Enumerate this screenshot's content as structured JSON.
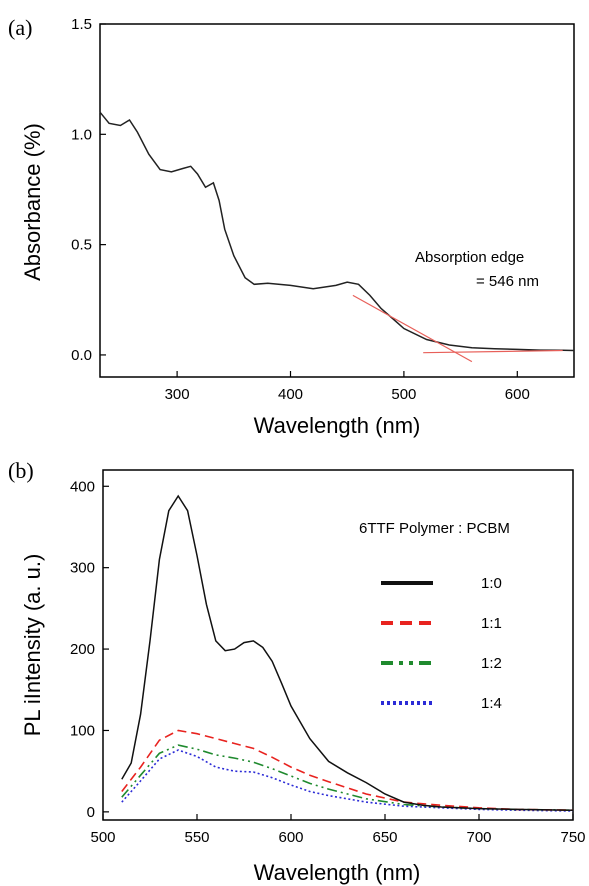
{
  "panels": [
    {
      "label": "(a)"
    },
    {
      "label": "(b)"
    }
  ],
  "chart_data": [
    {
      "type": "line",
      "xlabel": "Wavelength (nm)",
      "ylabel": "Absorbance (%)",
      "xlim": [
        232,
        650
      ],
      "ylim": [
        -0.1,
        1.5
      ],
      "xticks": [
        300,
        400,
        500,
        600
      ],
      "yticks": [
        "0.0",
        "0.5",
        "1.0",
        "1.5"
      ],
      "annotation": [
        "Absorption edge",
        "= 546 nm"
      ],
      "tangent_lines_color": "#e8605a",
      "series": [
        {
          "color": "#222222",
          "x": [
            232,
            240,
            250,
            258,
            265,
            275,
            285,
            295,
            305,
            312,
            318,
            325,
            332,
            337,
            342,
            350,
            360,
            368,
            380,
            400,
            420,
            440,
            450,
            460,
            470,
            480,
            490,
            500,
            520,
            540,
            560,
            580,
            600,
            620,
            640,
            650
          ],
          "y": [
            1.1,
            1.05,
            1.04,
            1.065,
            1.01,
            0.91,
            0.84,
            0.83,
            0.845,
            0.855,
            0.82,
            0.76,
            0.78,
            0.7,
            0.57,
            0.45,
            0.35,
            0.32,
            0.325,
            0.315,
            0.3,
            0.315,
            0.33,
            0.32,
            0.27,
            0.21,
            0.165,
            0.12,
            0.07,
            0.045,
            0.033,
            0.028,
            0.025,
            0.022,
            0.021,
            0.02
          ]
        }
      ],
      "tangents": [
        {
          "x": [
            455,
            560
          ],
          "y": [
            0.27,
            -0.03
          ]
        },
        {
          "x": [
            517,
            640
          ],
          "y": [
            0.01,
            0.02
          ]
        }
      ]
    },
    {
      "type": "line",
      "xlabel": "Wavelength (nm)",
      "ylabel": "PL iIntensity (a. u.)",
      "xlim": [
        500,
        750
      ],
      "ylim": [
        -10,
        420
      ],
      "xticks": [
        500,
        550,
        600,
        650,
        700,
        750
      ],
      "yticks": [
        0,
        100,
        200,
        300,
        400
      ],
      "legend_title": "6TTF Polymer : PCBM",
      "legend_position": "top-right",
      "series": [
        {
          "name": "1:0",
          "color": "#111111",
          "dash": "solid",
          "x": [
            510,
            515,
            520,
            525,
            530,
            535,
            540,
            545,
            550,
            555,
            560,
            565,
            570,
            575,
            580,
            585,
            590,
            595,
            600,
            610,
            620,
            630,
            640,
            650,
            660,
            670,
            680,
            700,
            720,
            750
          ],
          "y": [
            40,
            60,
            120,
            210,
            310,
            370,
            388,
            370,
            315,
            255,
            210,
            198,
            200,
            208,
            210,
            202,
            185,
            158,
            130,
            90,
            62,
            48,
            36,
            22,
            12,
            8,
            6,
            4,
            3,
            2
          ]
        },
        {
          "name": "1:1",
          "color": "#e8231f",
          "dash": "dashed",
          "x": [
            510,
            520,
            530,
            540,
            550,
            560,
            570,
            580,
            590,
            600,
            610,
            620,
            640,
            660,
            680,
            700,
            720,
            750
          ],
          "y": [
            25,
            55,
            88,
            100,
            96,
            90,
            84,
            78,
            67,
            55,
            45,
            37,
            22,
            12,
            8,
            5,
            3,
            2
          ]
        },
        {
          "name": "1:2",
          "color": "#1f8a2e",
          "dash": "dashdotdot",
          "x": [
            510,
            520,
            530,
            540,
            550,
            560,
            570,
            580,
            590,
            600,
            610,
            620,
            640,
            660,
            680,
            700,
            720,
            750
          ],
          "y": [
            18,
            45,
            72,
            82,
            77,
            70,
            66,
            61,
            53,
            44,
            35,
            28,
            16,
            9,
            6,
            4,
            3,
            2
          ]
        },
        {
          "name": "1:4",
          "color": "#2b2bd6",
          "dash": "dotted",
          "x": [
            510,
            520,
            530,
            540,
            550,
            560,
            570,
            580,
            590,
            600,
            610,
            620,
            640,
            660,
            680,
            700,
            720,
            750
          ],
          "y": [
            12,
            38,
            65,
            76,
            68,
            55,
            50,
            49,
            42,
            33,
            25,
            20,
            12,
            7,
            5,
            3,
            2,
            1
          ]
        }
      ]
    }
  ]
}
